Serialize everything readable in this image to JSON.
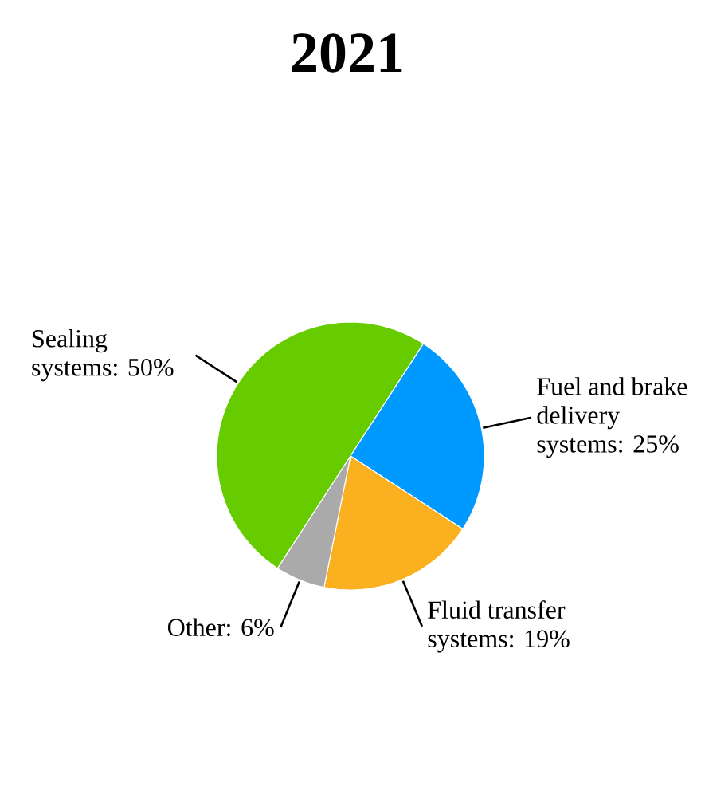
{
  "chart_data": {
    "type": "pie",
    "title": "2021",
    "categories": [
      "Sealing systems: 50%",
      "Fuel and brake delivery systems: 25%",
      "Fluid transfer systems: 19%",
      "Other: 6%"
    ],
    "values": [
      50,
      25,
      19,
      6
    ],
    "colors": [
      "#66cc00",
      "#0099ff",
      "#fbb01f",
      "#aaaaaa"
    ]
  }
}
